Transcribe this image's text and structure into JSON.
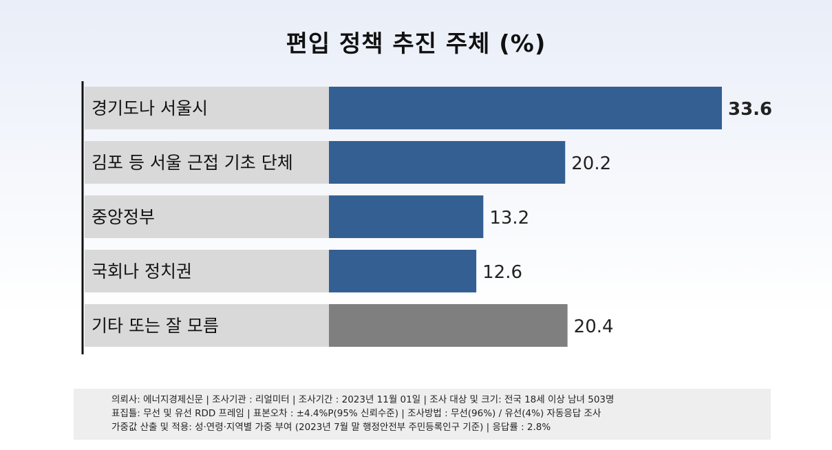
{
  "chart_data": {
    "type": "bar",
    "orientation": "horizontal",
    "title": "편입 정책 추진 주체 (%)",
    "categories": [
      "경기도나 서울시",
      "김포 등 서울 근접 기초 단체",
      "중앙정부",
      "국회나 정치권",
      "기타 또는 잘 모름"
    ],
    "values": [
      33.6,
      20.2,
      13.2,
      12.6,
      20.4
    ],
    "value_labels": [
      "33.6",
      "20.2",
      "13.2",
      "12.6",
      "20.4"
    ],
    "xlim": [
      0,
      34
    ],
    "colors": [
      "#345f92",
      "#345f92",
      "#345f92",
      "#345f92",
      "#7f7f7f"
    ],
    "label_bg_color": "#d9d9d9",
    "highlight": "first bar value bold",
    "grid": false,
    "legend": "none"
  },
  "footer": {
    "line1": "의뢰사: 에너지경제신문  | 조사기관 : 리얼미터  | 조사기간 : 2023년 11월 01일 | 조사 대상 및 크기: 전국 18세 이상 남녀 503명",
    "line2": "표집틀: 무선 및 유선 RDD 프레임 | 표본오차 : ±4.4%P(95% 신뢰수준) | 조사방법 : 무선(96%) / 유선(4%) 자동응답 조사",
    "line3": "가중값 산출 및 적용: 성·연령·지역별 가중 부여 (2023년 7월 말 행정안전부 주민등록인구 기준) | 응답률 : 2.8%"
  }
}
